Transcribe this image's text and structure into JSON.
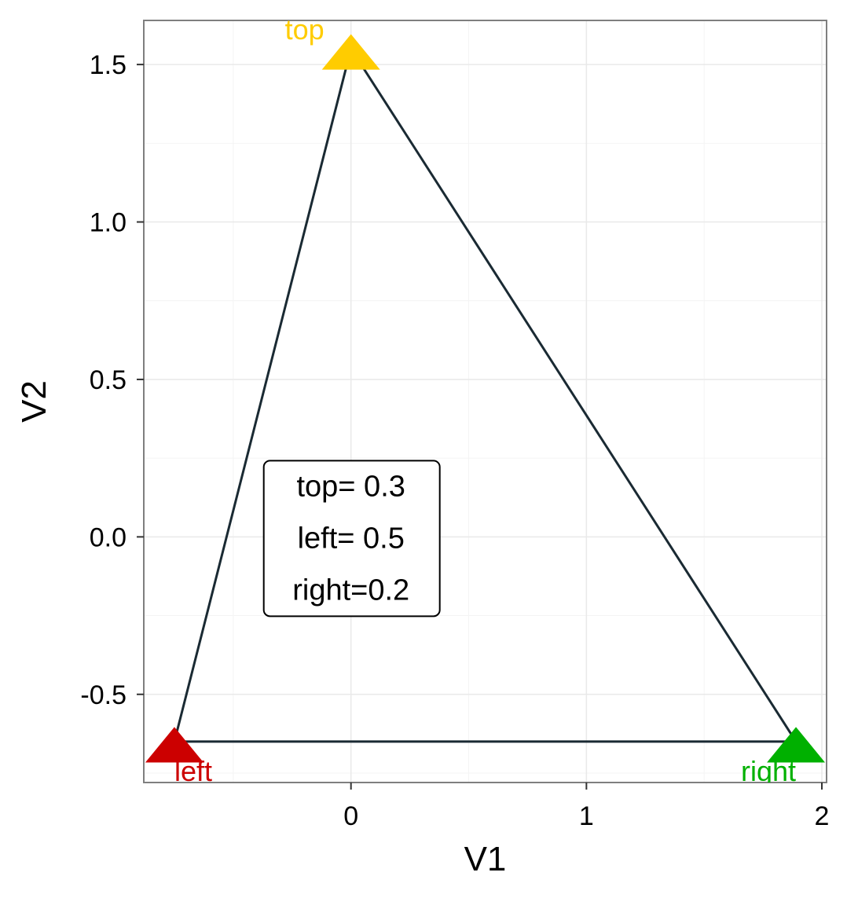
{
  "chart_data": {
    "type": "scatter",
    "title": "",
    "xlabel": "V1",
    "ylabel": "V2",
    "xlim": [
      -0.88,
      2.02
    ],
    "ylim": [
      -0.78,
      1.64
    ],
    "x_ticks": [
      0,
      1,
      2
    ],
    "x_tick_labels": [
      "0",
      "1",
      "2"
    ],
    "y_ticks": [
      -0.5,
      0.0,
      0.5,
      1.0,
      1.5
    ],
    "y_tick_labels": [
      "-0.5",
      "0.0",
      "0.5",
      "1.0",
      "1.5"
    ],
    "grid": true,
    "points": [
      {
        "label": "top",
        "x": 0.0,
        "y": 1.55,
        "color": "#FFCC00"
      },
      {
        "label": "left",
        "x": -0.75,
        "y": -0.65,
        "color": "#CC0000"
      },
      {
        "label": "right",
        "x": 1.89,
        "y": -0.65,
        "color": "#00B000"
      }
    ],
    "triangle_path": [
      {
        "x": 0.0,
        "y": 1.55
      },
      {
        "x": 1.89,
        "y": -0.65
      },
      {
        "x": -0.75,
        "y": -0.65
      },
      {
        "x": 0.0,
        "y": 1.55
      }
    ],
    "line_color": "#1a2a33",
    "annotation": {
      "lines": [
        "top= 0.3",
        "left= 0.5",
        "right=0.2"
      ],
      "x": 0.0,
      "y": 0.0
    }
  }
}
